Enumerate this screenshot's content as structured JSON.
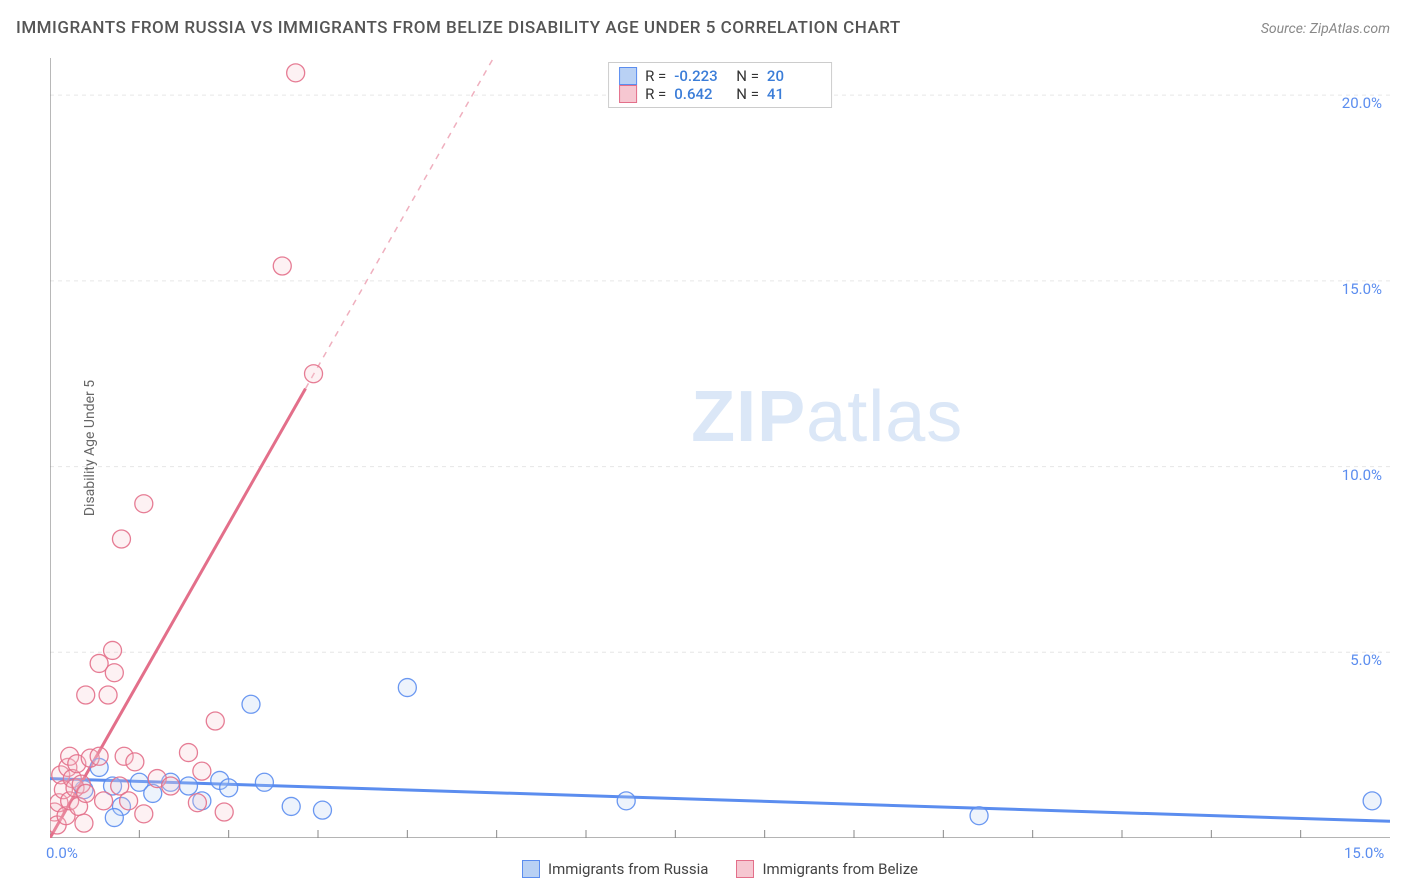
{
  "header": {
    "title": "IMMIGRANTS FROM RUSSIA VS IMMIGRANTS FROM BELIZE DISABILITY AGE UNDER 5 CORRELATION CHART",
    "source": "Source: ZipAtlas.com"
  },
  "watermark": {
    "bold": "ZIP",
    "rest": "atlas"
  },
  "chart": {
    "type": "scatter",
    "background_color": "#ffffff",
    "grid_color": "#e6e6e6",
    "axis_color": "#888888",
    "y_axis_label": "Disability Age Under 5",
    "x_range": [
      0,
      15
    ],
    "y_range": [
      0,
      21
    ],
    "x_ticks": [
      {
        "v": 0,
        "label": "0.0%"
      },
      {
        "v": 15,
        "label": "15.0%"
      }
    ],
    "y_ticks": [
      {
        "v": 5,
        "label": "5.0%"
      },
      {
        "v": 10,
        "label": "10.0%"
      },
      {
        "v": 15,
        "label": "15.0%"
      },
      {
        "v": 20,
        "label": "20.0%"
      }
    ],
    "x_minor_grid": [
      1,
      2,
      3,
      4,
      5,
      6,
      7,
      8,
      9,
      10,
      11,
      12,
      13,
      14
    ],
    "marker_radius": 9,
    "marker_fill_opacity": 0.25,
    "marker_stroke_opacity": 0.9,
    "trend_line_width": 3,
    "series": [
      {
        "id": "russia",
        "name": "Immigrants from Russia",
        "color": "#5b8def",
        "fill": "#b9d1f4",
        "r_value": "-0.223",
        "n_value": "20",
        "trend": {
          "x1": 0,
          "y1": 1.6,
          "x2": 15,
          "y2": 0.45,
          "dashed_from": null
        },
        "points": [
          [
            0.38,
            1.3
          ],
          [
            0.55,
            1.9
          ],
          [
            0.7,
            1.4
          ],
          [
            0.8,
            0.85
          ],
          [
            0.72,
            0.55
          ],
          [
            1.0,
            1.5
          ],
          [
            1.15,
            1.2
          ],
          [
            1.35,
            1.5
          ],
          [
            1.55,
            1.4
          ],
          [
            1.7,
            1.0
          ],
          [
            1.9,
            1.55
          ],
          [
            2.0,
            1.35
          ],
          [
            2.25,
            3.6
          ],
          [
            2.4,
            1.5
          ],
          [
            2.7,
            0.85
          ],
          [
            3.05,
            0.75
          ],
          [
            4.0,
            4.05
          ],
          [
            6.45,
            1.0
          ],
          [
            10.4,
            0.6
          ],
          [
            14.8,
            1.0
          ]
        ]
      },
      {
        "id": "belize",
        "name": "Immigrants from Belize",
        "color": "#e36f8a",
        "fill": "#f6c7d1",
        "r_value": "0.642",
        "n_value": "41",
        "trend": {
          "x1": 0,
          "y1": 0.0,
          "x2": 5.2,
          "y2": 22.0,
          "dashed_from": 0.55
        },
        "points": [
          [
            0.05,
            0.7
          ],
          [
            0.08,
            0.35
          ],
          [
            0.1,
            0.95
          ],
          [
            0.12,
            1.7
          ],
          [
            0.15,
            1.3
          ],
          [
            0.18,
            0.6
          ],
          [
            0.2,
            1.9
          ],
          [
            0.22,
            2.2
          ],
          [
            0.22,
            1.0
          ],
          [
            0.25,
            1.6
          ],
          [
            0.28,
            1.35
          ],
          [
            0.3,
            2.0
          ],
          [
            0.32,
            0.85
          ],
          [
            0.35,
            1.45
          ],
          [
            0.38,
            0.4
          ],
          [
            0.4,
            1.2
          ],
          [
            0.45,
            2.15
          ],
          [
            0.4,
            3.85
          ],
          [
            0.55,
            2.2
          ],
          [
            0.55,
            4.7
          ],
          [
            0.65,
            3.85
          ],
          [
            0.7,
            5.05
          ],
          [
            0.72,
            4.45
          ],
          [
            0.78,
            1.4
          ],
          [
            0.83,
            2.2
          ],
          [
            0.88,
            1.0
          ],
          [
            0.95,
            2.05
          ],
          [
            1.05,
            0.65
          ],
          [
            1.05,
            9.0
          ],
          [
            0.8,
            8.05
          ],
          [
            1.2,
            1.6
          ],
          [
            1.35,
            1.4
          ],
          [
            1.55,
            2.3
          ],
          [
            1.65,
            0.95
          ],
          [
            1.7,
            1.8
          ],
          [
            1.85,
            3.15
          ],
          [
            1.95,
            0.7
          ],
          [
            2.6,
            15.4
          ],
          [
            2.75,
            20.6
          ],
          [
            2.95,
            12.5
          ],
          [
            0.6,
            1.0
          ]
        ]
      }
    ],
    "legend_top_labels": {
      "r": "R =",
      "n": "N ="
    },
    "legend_bottom_order": [
      "russia",
      "belize"
    ]
  }
}
